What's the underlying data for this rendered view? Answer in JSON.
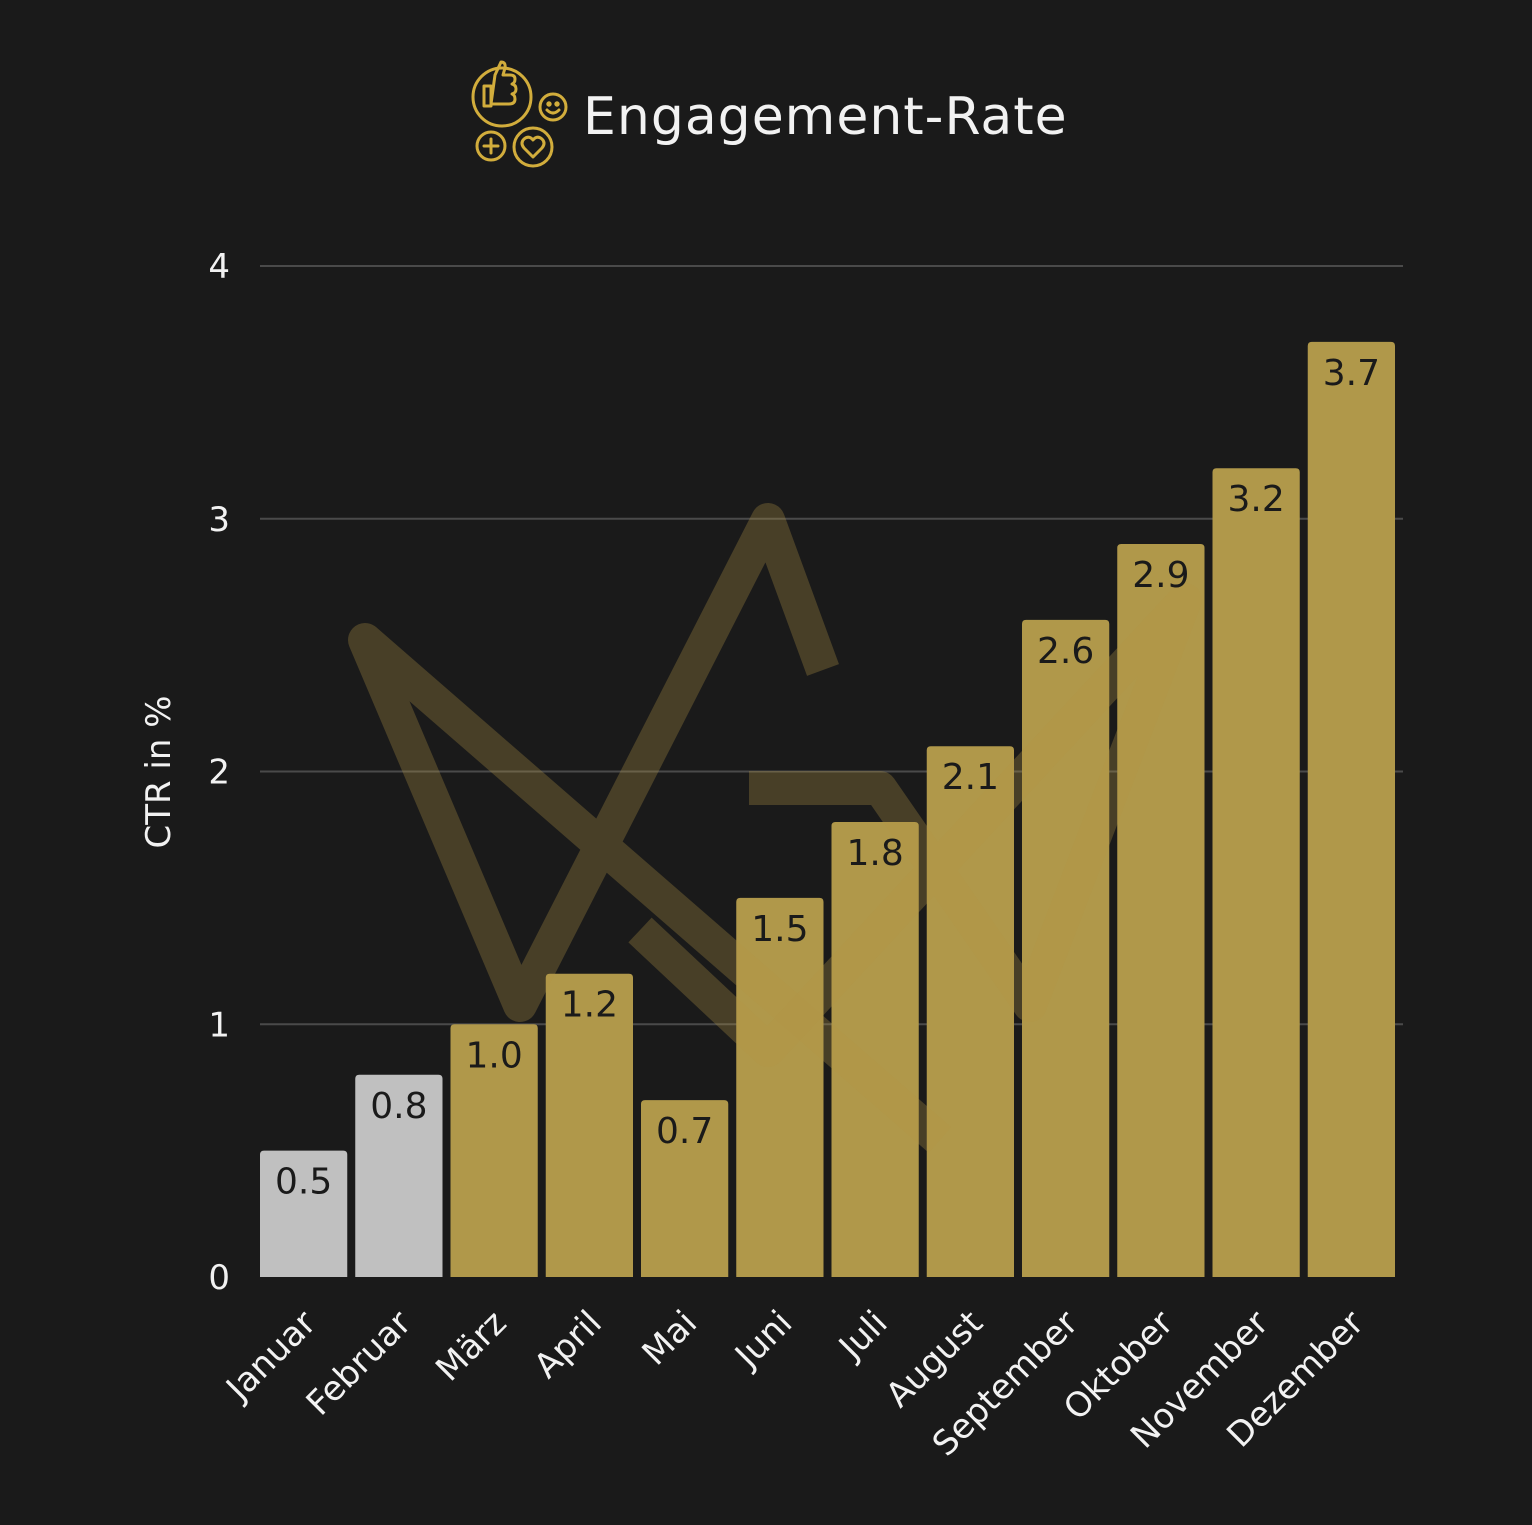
{
  "chart_data": {
    "type": "bar",
    "title": "Engagement-Rate",
    "xlabel": "",
    "ylabel": "CTR in %",
    "ylim": [
      0,
      4
    ],
    "yticks": [
      0,
      1,
      2,
      3,
      4
    ],
    "grid": true,
    "categories": [
      "Januar",
      "Februar",
      "März",
      "April",
      "Mai",
      "Juni",
      "Juli",
      "August",
      "September",
      "Oktober",
      "November",
      "Dezember"
    ],
    "values": [
      0.5,
      0.8,
      1.0,
      1.2,
      0.7,
      1.5,
      1.8,
      2.1,
      2.6,
      2.9,
      3.2,
      3.7
    ],
    "value_labels": [
      "0.5",
      "0.8",
      "1.0",
      "1.2",
      "0.7",
      "1.5",
      "1.8",
      "2.1",
      "2.6",
      "2.9",
      "3.2",
      "3.7"
    ],
    "bar_colors": [
      "#c0c0c0",
      "#c0c0c0",
      "#b0984a",
      "#b0984a",
      "#b0984a",
      "#b0984a",
      "#b0984a",
      "#b0984a",
      "#b0984a",
      "#b0984a",
      "#b0984a",
      "#b0984a"
    ]
  },
  "colors": {
    "background": "#1a1a1a",
    "text": "#f2f2f2",
    "label_text": "#1a1a1a",
    "gridline": "#4a4a4a",
    "accent_gold": "#b0984a",
    "icon_gold": "#d2ad3c"
  },
  "icons": {
    "title_icon": "engagement-reactions-icon",
    "watermark": "gold-brand-monogram"
  }
}
